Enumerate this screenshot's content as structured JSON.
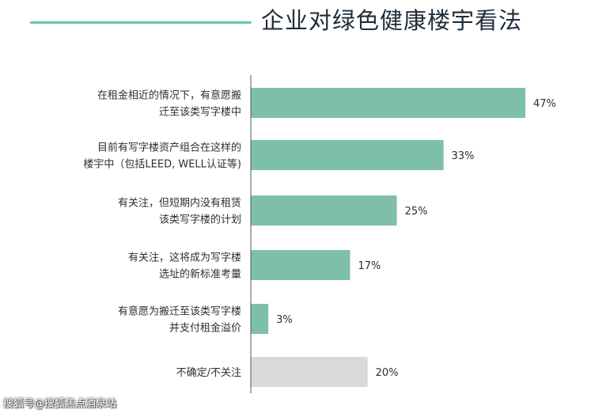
{
  "title": "企业对绿色健康楼宇看法",
  "watermark": "搜狐号@搜狐焦点酒泉站",
  "colors": {
    "bar": "#7dbfa9",
    "bar_last": "#d9d9d9",
    "accent_line": "#62c9a6",
    "axis": "#555555"
  },
  "chart_data": {
    "type": "bar",
    "orientation": "horizontal",
    "categories": [
      [
        "在租金相近的情况下，有意愿搬",
        "迁至该类写字楼中"
      ],
      [
        "目前有写字楼资产组合在这样的",
        "楼宇中（包括LEED, WELL认证等)"
      ],
      [
        "有关注，但短期内没有租赁",
        "该类写字楼的计划"
      ],
      [
        "有关注，这将成为写字楼",
        "选址的新标准考量"
      ],
      [
        "有意愿为搬迁至该类写字楼",
        "并支付租金溢价"
      ],
      [
        "不确定/不关注"
      ]
    ],
    "values": [
      47,
      33,
      25,
      17,
      3,
      20
    ],
    "value_labels": [
      "47%",
      "33%",
      "25%",
      "17%",
      "3%",
      "20%"
    ],
    "unit": "%",
    "xlim": [
      0,
      50
    ],
    "grid": false
  }
}
